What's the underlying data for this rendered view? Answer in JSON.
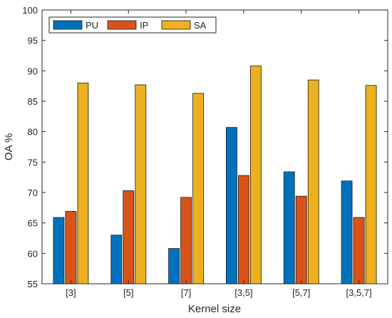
{
  "chart_data": {
    "type": "bar",
    "title": "",
    "xlabel": "Kernel size",
    "ylabel": "OA %",
    "ylim": [
      55,
      100
    ],
    "yticks": [
      55,
      60,
      65,
      70,
      75,
      80,
      85,
      90,
      95,
      100
    ],
    "categories": [
      "[3]",
      "[5]",
      "[7]",
      "[3,5]",
      "[5,7]",
      "[3,5,7]"
    ],
    "series": [
      {
        "name": "PU",
        "color": "#0072BD",
        "values": [
          65.9,
          63.0,
          60.8,
          80.7,
          73.4,
          71.9
        ]
      },
      {
        "name": "IP",
        "color": "#D95319",
        "values": [
          66.9,
          70.3,
          69.2,
          72.8,
          69.4,
          65.9
        ]
      },
      {
        "name": "SA",
        "color": "#EDB120",
        "values": [
          88.0,
          87.7,
          86.3,
          90.8,
          88.5,
          87.6
        ]
      }
    ],
    "grid": false,
    "legend": "top-left"
  }
}
